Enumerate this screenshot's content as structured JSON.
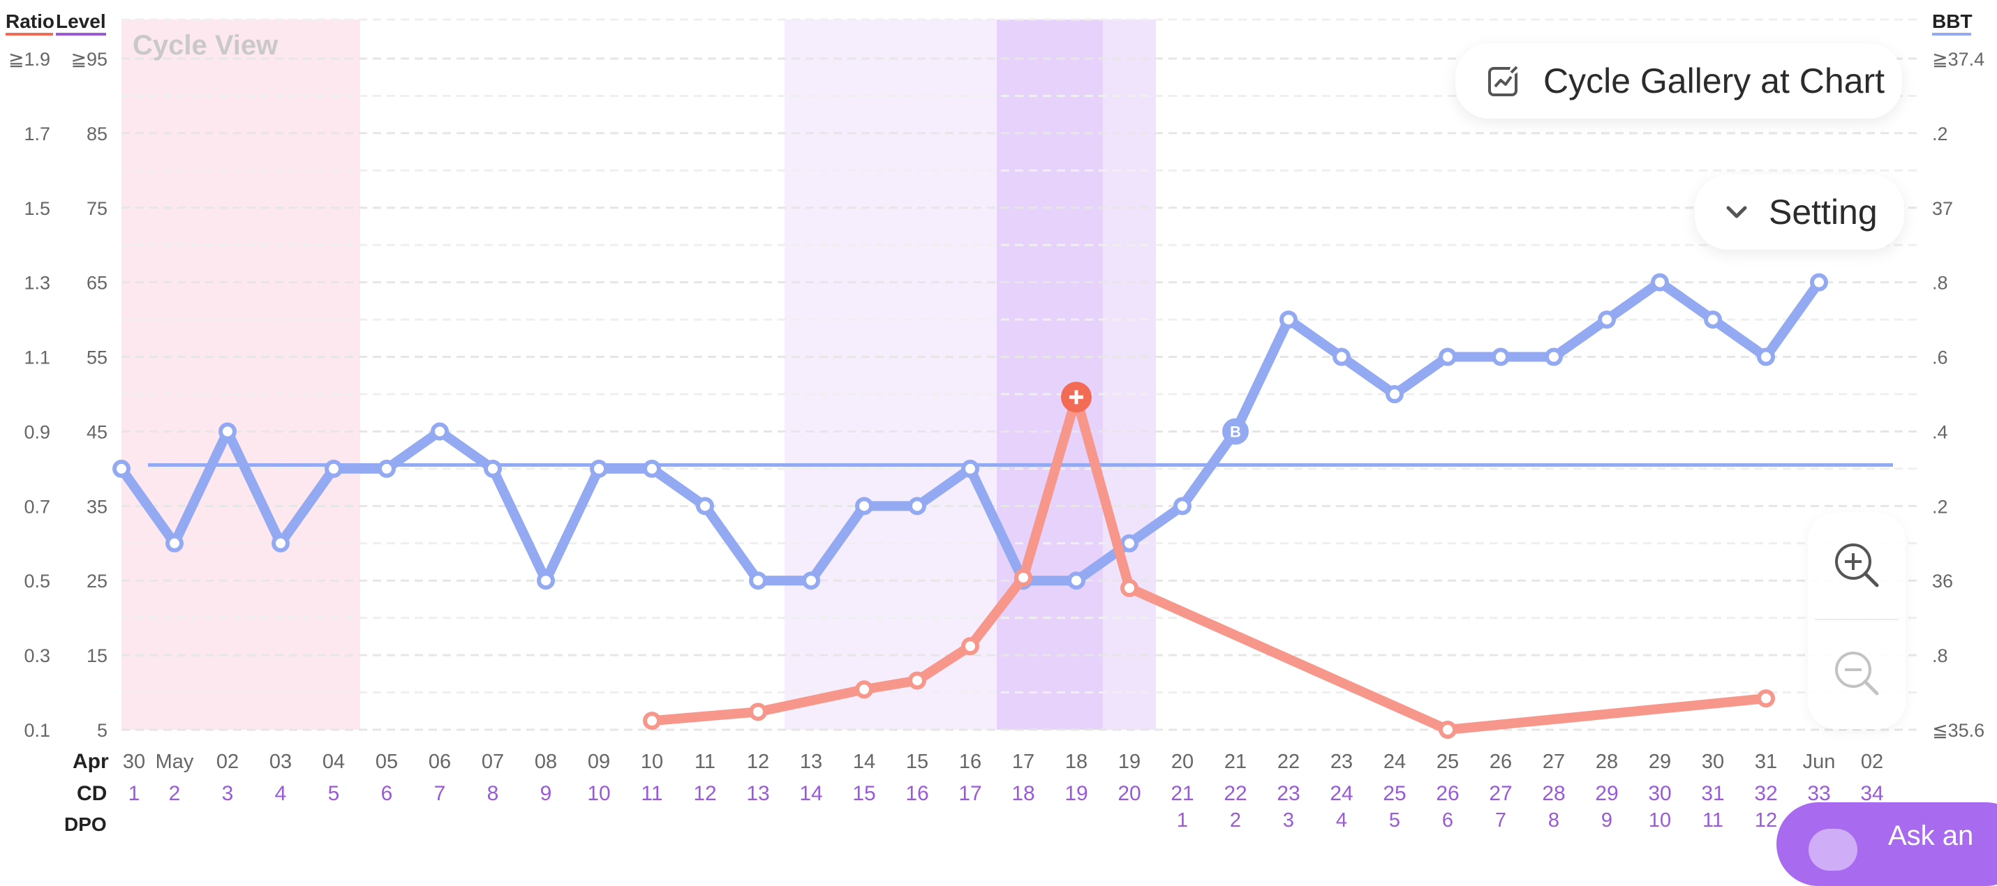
{
  "header": {
    "ratio_label": "Ratio",
    "level_label": "Level",
    "bbt_label": "BBT",
    "watermark": "Cycle View"
  },
  "buttons": {
    "gallery_label": "Cycle Gallery at Chart",
    "setting_label": "Setting",
    "ask_label": "Ask an"
  },
  "row_labels": {
    "month": "Apr",
    "cd": "CD",
    "dpo": "DPO"
  },
  "colors": {
    "bbt_line": "#93aaf3",
    "hormone_line": "#f7968a",
    "peak_marker": "#f26b55",
    "menstruation_band": "#fde8ef",
    "fertile_band": "#f6eefc",
    "peak_band": "#e6d2fb",
    "post_peak_band": "#efe4fb",
    "day_label_purple": "#9a5ad8",
    "axis_text": "#666666",
    "coverline": "#93aaf3"
  },
  "chart_data": {
    "type": "line",
    "axes": {
      "ratio_ticks": [
        "≧1.9",
        "1.7",
        "1.5",
        "1.3",
        "1.1",
        "0.9",
        "0.7",
        "0.5",
        "0.3",
        "0.1"
      ],
      "level_ticks": [
        "≧95",
        "85",
        "75",
        "65",
        "55",
        "45",
        "35",
        "25",
        "15",
        "5"
      ],
      "bbt_ticks": [
        "≧37.4",
        ".2",
        "37",
        ".8",
        ".6",
        ".4",
        ".2",
        "36",
        ".8",
        "≦35.6"
      ],
      "level_range": [
        5,
        95
      ],
      "bbt_range": [
        35.6,
        37.4
      ],
      "grid": true
    },
    "date_labels": [
      "30",
      "May",
      "02",
      "03",
      "04",
      "05",
      "06",
      "07",
      "08",
      "09",
      "10",
      "11",
      "12",
      "13",
      "14",
      "15",
      "16",
      "17",
      "18",
      "19",
      "20",
      "21",
      "22",
      "23",
      "24",
      "25",
      "26",
      "27",
      "28",
      "29",
      "30",
      "31",
      "Jun",
      "02"
    ],
    "cd_labels": [
      "1",
      "2",
      "3",
      "4",
      "5",
      "6",
      "7",
      "8",
      "9",
      "10",
      "11",
      "12",
      "13",
      "14",
      "15",
      "16",
      "17",
      "18",
      "19",
      "20",
      "21",
      "22",
      "23",
      "24",
      "25",
      "26",
      "27",
      "28",
      "29",
      "30",
      "31",
      "32",
      "33",
      "34"
    ],
    "dpo_labels": [
      "",
      "",
      "",
      "",
      "",
      "",
      "",
      "",
      "",
      "",
      "",
      "",
      "",
      "",
      "",
      "",
      "",
      "",
      "",
      "",
      "1",
      "2",
      "3",
      "4",
      "5",
      "6",
      "7",
      "8",
      "9",
      "10",
      "11",
      "12",
      "",
      ""
    ],
    "bands": [
      {
        "kind": "menstruation",
        "from_day": 1,
        "to_day": 5
      },
      {
        "kind": "fertile",
        "from_day": 14,
        "to_day": 17
      },
      {
        "kind": "peak",
        "from_day": 18,
        "to_day": 19
      },
      {
        "kind": "post_peak",
        "from_day": 20,
        "to_day": 20
      }
    ],
    "bbt_series": {
      "days": [
        1,
        2,
        3,
        4,
        5,
        6,
        7,
        8,
        9,
        10,
        11,
        12,
        13,
        14,
        15,
        16,
        17,
        18,
        19,
        20,
        21,
        22,
        23,
        24,
        25,
        26,
        27,
        28,
        29,
        30,
        31,
        32,
        33
      ],
      "values": [
        36.3,
        36.1,
        36.4,
        36.1,
        36.3,
        36.3,
        36.4,
        36.3,
        36.0,
        36.3,
        36.3,
        36.2,
        36.0,
        36.0,
        36.2,
        36.2,
        36.3,
        36.0,
        36.0,
        36.1,
        36.2,
        36.4,
        36.7,
        36.6,
        36.5,
        36.6,
        36.6,
        36.6,
        36.7,
        36.8,
        36.7,
        36.6,
        36.8
      ],
      "special_points": [
        {
          "day": 22,
          "badge": "B"
        }
      ]
    },
    "coverline": 36.31,
    "hormone_series": {
      "days": [
        11,
        13,
        15,
        16,
        17,
        18,
        19,
        20,
        26,
        32
      ],
      "values": [
        6.2,
        7.4,
        10.4,
        11.6,
        16.2,
        25.4,
        49.6,
        24.0,
        5.0,
        9.2
      ],
      "peak_day": 19
    }
  }
}
